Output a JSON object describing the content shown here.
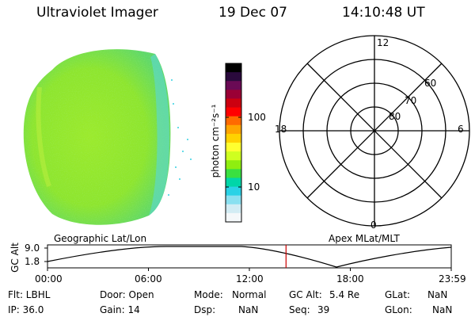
{
  "header": {
    "instrument": "Ultraviolet Imager",
    "date": "19 Dec 07",
    "time": "14:10:48 UT"
  },
  "colorbar": {
    "unit_label": "photon cm⁻²s⁻¹",
    "ticks": [
      "100",
      "10"
    ],
    "colors": [
      "#000000",
      "#2a0a3c",
      "#6a0a55",
      "#9a0035",
      "#cc0010",
      "#ff0000",
      "#ff6a00",
      "#ffa500",
      "#ffd200",
      "#ffff30",
      "#cfff20",
      "#8fee10",
      "#3ae040",
      "#00d6a8",
      "#2ad2e6",
      "#8ae0f0",
      "#d2ecf4",
      "#f4f8fa"
    ]
  },
  "polar_plot": {
    "mlt_labels": [
      "12",
      "18",
      "6",
      "0"
    ],
    "lat_labels": [
      "60",
      "70",
      "80"
    ]
  },
  "timeline": {
    "left_title": "Geographic Lat/Lon",
    "right_title": "Apex MLat/MLT",
    "axis_label": "GC Alt",
    "y_ticks": [
      "9.0",
      "1.8"
    ],
    "time_ticks": [
      "00:00",
      "06:00",
      "12:00",
      "18:00",
      "23:59"
    ],
    "current_marker_hour": 14.18,
    "marker_color": "#cc0000"
  },
  "info": {
    "flt": "Flt: LBHL",
    "ip": "IP: 36.0",
    "door": "Door: Open",
    "gain": "Gain: 14",
    "mode_label": "Mode:",
    "mode_value": "Normal",
    "dsp_label": "Dsp:",
    "dsp_value": "NaN",
    "gcalt_label": "GC Alt:",
    "gcalt_value": "5.4 Re",
    "seq_label": "Seq:",
    "seq_value": "39",
    "glat_label": "GLat:",
    "glat_value": "NaN",
    "glon_label": "GLon:",
    "glon_value": "NaN"
  }
}
